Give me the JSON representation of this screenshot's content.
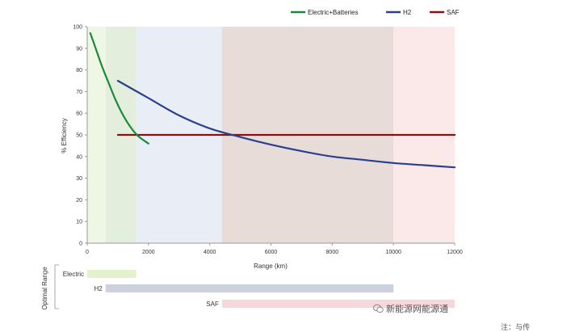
{
  "chart_data": {
    "type": "line",
    "xlabel": "Range (km)",
    "ylabel": "% Efficiency",
    "xlim": [
      0,
      12000
    ],
    "ylim": [
      0,
      100
    ],
    "xticks": [
      0,
      2000,
      4000,
      6000,
      8000,
      10000,
      12000
    ],
    "yticks": [
      0,
      10,
      20,
      30,
      40,
      50,
      60,
      70,
      80,
      90,
      100
    ],
    "legend_position": "top-right",
    "series": [
      {
        "name": "Electric+Batteries",
        "color": "#1a8a3a",
        "x": [
          100,
          300,
          500,
          700,
          900,
          1100,
          1300,
          1500,
          1700,
          2000
        ],
        "y": [
          97,
          89,
          81,
          74,
          67,
          61,
          56,
          52,
          49,
          46
        ]
      },
      {
        "name": "H2",
        "color": "#2a3f8f",
        "x": [
          1000,
          2000,
          3000,
          4000,
          5000,
          6000,
          7000,
          8000,
          9000,
          10000,
          11000,
          12000
        ],
        "y": [
          75,
          67,
          59,
          53,
          49,
          45.5,
          42.5,
          40,
          38.5,
          37,
          36,
          35
        ]
      },
      {
        "name": "SAF",
        "color": "#8b1010",
        "x": [
          1000,
          12000
        ],
        "y": [
          50,
          50
        ]
      }
    ],
    "background_bands": [
      {
        "from": 0,
        "to": 600,
        "color": "#eef7e3"
      },
      {
        "from": 600,
        "to": 1600,
        "color": "#e3eedd"
      },
      {
        "from": 1600,
        "to": 4400,
        "color": "#e9eef6"
      },
      {
        "from": 4400,
        "to": 10000,
        "color": "#e8dcd9"
      },
      {
        "from": 10000,
        "to": 12000,
        "color": "#fbe8e8"
      }
    ],
    "optimal_range": {
      "title": "Optimal Range",
      "bars": [
        {
          "label": "Electric",
          "from": 0,
          "to": 1600,
          "color": "#e3f1cf"
        },
        {
          "label": "H2",
          "from": 600,
          "to": 10000,
          "color": "#cbd2de"
        },
        {
          "label": "SAF",
          "from": 4400,
          "to": 12000,
          "color": "#f6d8dc"
        }
      ]
    }
  },
  "watermark": {
    "text": "新能源网能源通",
    "icon": "wechat-icon"
  },
  "note": "注：与传"
}
